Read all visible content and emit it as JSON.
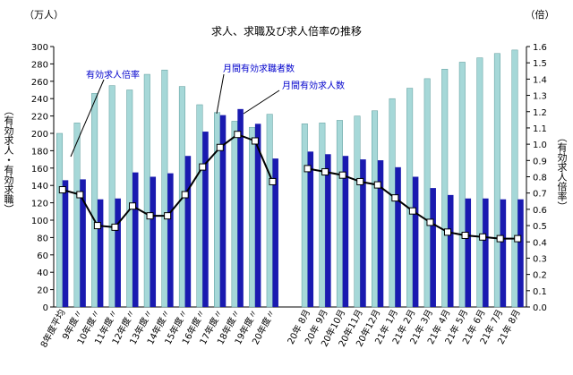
{
  "chart_data": {
    "type": "bar",
    "title": "求人、求職及び求人倍率の推移",
    "y_left_unit": "（万人）",
    "y_right_unit": "（倍）",
    "ylabel_left": "（有効求人・有効求職）",
    "ylabel_right": "（有効求人倍率）",
    "ylim_left": [
      0,
      300
    ],
    "ylim_right": [
      0,
      1.6
    ],
    "y_left_ticks": [
      0,
      20,
      40,
      60,
      80,
      100,
      120,
      140,
      160,
      180,
      200,
      220,
      240,
      260,
      280,
      300
    ],
    "y_right_ticks": [
      "0.0",
      "0.1",
      "0.2",
      "0.3",
      "0.4",
      "0.5",
      "0.6",
      "0.7",
      "0.8",
      "0.9",
      "1.0",
      "1.1",
      "1.2",
      "1.3",
      "1.4",
      "1.5",
      "1.6"
    ],
    "categories": [
      "8年度平均",
      "9年度〃",
      "10年度〃",
      "11年度〃",
      "12年度〃",
      "13年度〃",
      "14年度〃",
      "15年度〃",
      "16年度〃",
      "17年度〃",
      "18年度〃",
      "19年度〃",
      "20年度〃",
      "",
      "20年 8月",
      "20年 9月",
      "20年10月",
      "20年11月",
      "20年12月",
      "21年 1月",
      "21年 2月",
      "21年 3月",
      "21年 4月",
      "21年 5月",
      "21年 6月",
      "21年 7月",
      "21年 8月"
    ],
    "series": [
      {
        "name": "月間有効求職者数",
        "kind": "bar",
        "axis": "left",
        "color": "#a6d8d8",
        "values": [
          200,
          212,
          246,
          255,
          250,
          268,
          273,
          254,
          233,
          224,
          214,
          207,
          222,
          null,
          211,
          212,
          215,
          220,
          226,
          240,
          252,
          263,
          274,
          282,
          287,
          292,
          296
        ]
      },
      {
        "name": "月間有効求人数",
        "kind": "bar",
        "axis": "left",
        "color": "#1a1ab0",
        "values": [
          146,
          147,
          124,
          125,
          155,
          150,
          154,
          174,
          202,
          221,
          228,
          211,
          171,
          null,
          179,
          176,
          174,
          170,
          169,
          161,
          150,
          137,
          129,
          125,
          125,
          124,
          124
        ]
      },
      {
        "name": "有効求人倍率",
        "kind": "line",
        "axis": "right",
        "color": "#000000",
        "values": [
          0.72,
          0.69,
          0.5,
          0.49,
          0.62,
          0.56,
          0.56,
          0.69,
          0.86,
          0.98,
          1.06,
          1.02,
          0.77,
          null,
          0.85,
          0.83,
          0.81,
          0.77,
          0.75,
          0.67,
          0.59,
          0.52,
          0.46,
          0.44,
          0.43,
          0.42,
          0.42
        ]
      }
    ],
    "legend_labels": [
      "有効求人倍率",
      "月間有効求職者数",
      "月間有効求人数"
    ],
    "legend": "inline callouts",
    "grid": false
  }
}
